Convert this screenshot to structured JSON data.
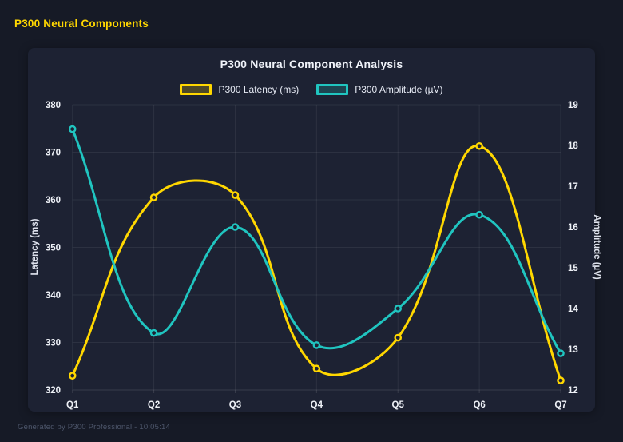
{
  "page": {
    "header_title": "P300 Neural Components",
    "footer": "Generated by P300 Professional - 10:05:14"
  },
  "colors": {
    "page_bg": "#161a26",
    "card_bg": "#1d2233",
    "header_text": "#ffd700",
    "title_text": "#f0f3fa",
    "tick_text": "#eef1f7",
    "axis_title_text": "#dfe3ee",
    "grid": "rgba(255,255,255,0.07)",
    "baseline": "rgba(255,255,255,0.12)",
    "latency_series": "#ffd700",
    "amplitude_series": "#20c5c0"
  },
  "chart_data": {
    "type": "line",
    "title": "P300 Neural Component Analysis",
    "categories": [
      "Q1",
      "Q2",
      "Q3",
      "Q4",
      "Q5",
      "Q6",
      "Q7"
    ],
    "series": [
      {
        "name": "P300 Latency (ms)",
        "axis": "left",
        "color": "#ffd700",
        "values": [
          323,
          360.5,
          361,
          324.5,
          331,
          371.3,
          322
        ]
      },
      {
        "name": "P300 Amplitude (µV)",
        "axis": "right",
        "color": "#20c5c0",
        "values": [
          18.4,
          13.4,
          16.0,
          13.1,
          14.0,
          16.3,
          12.9
        ]
      }
    ],
    "left_axis": {
      "label": "Latency (ms)",
      "min": 320,
      "max": 380,
      "ticks": [
        320,
        330,
        340,
        350,
        360,
        370,
        380
      ]
    },
    "right_axis": {
      "label": "Amplitude (µV)",
      "min": 12,
      "max": 19,
      "ticks": [
        12,
        13,
        14,
        15,
        16,
        17,
        18,
        19
      ]
    },
    "legend_position": "top",
    "grid": true,
    "line_smoothing_tension": 0.4
  }
}
